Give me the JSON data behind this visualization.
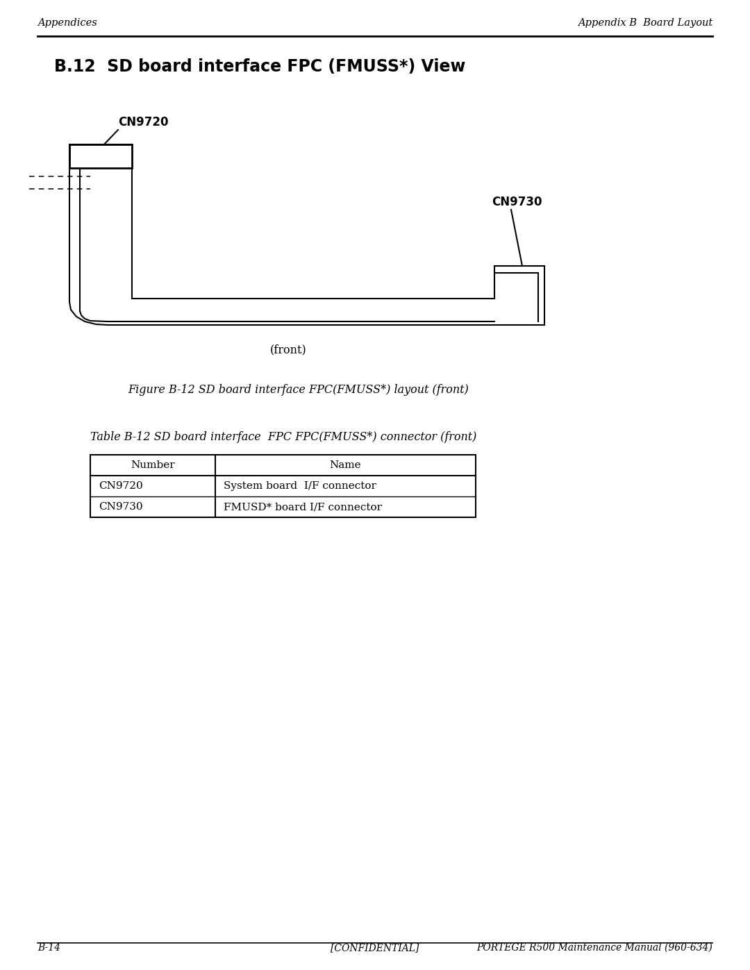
{
  "page_title": "B.12  SD board interface FPC (FMUSS*) View",
  "header_left": "Appendices",
  "header_right": "Appendix B  Board Layout",
  "footer_left": "B-14",
  "footer_center": "[CONFIDENTIAL]",
  "footer_right": "PORTEGE R500 Maintenance Manual (960-634)",
  "figure_caption": "Figure B-12 SD board interface FPC(FMUSS*) layout (front)",
  "table_title": "Table B-12 SD board interface  FPC FPC(FMUSS*) connector (front)",
  "label_cn9720": "CN9720",
  "label_cn9730": "CN9730",
  "front_label": "(front)",
  "table_headers": [
    "Number",
    "Name"
  ],
  "table_rows": [
    [
      "CN9720",
      "System board  I/F connector"
    ],
    [
      "CN9730",
      "FMUSD* board I/F connector"
    ]
  ],
  "bg_color": "#ffffff",
  "line_color": "#000000"
}
